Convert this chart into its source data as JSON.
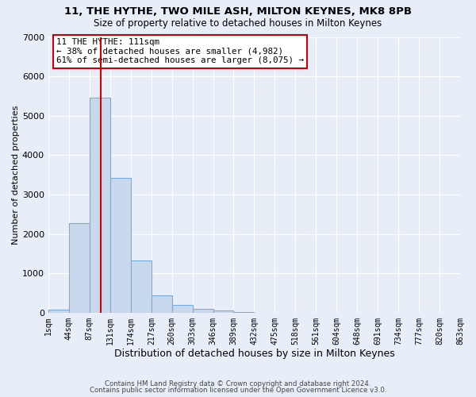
{
  "title": "11, THE HYTHE, TWO MILE ASH, MILTON KEYNES, MK8 8PB",
  "subtitle": "Size of property relative to detached houses in Milton Keynes",
  "xlabel": "Distribution of detached houses by size in Milton Keynes",
  "ylabel": "Number of detached properties",
  "bar_color": "#c8d9ee",
  "bar_edge_color": "#7aabda",
  "background_color": "#e8eef8",
  "grid_color": "#ffffff",
  "bin_edges": [
    1,
    44,
    87,
    131,
    174,
    217,
    260,
    303,
    346,
    389,
    432,
    475,
    518,
    561,
    604,
    648,
    691,
    734,
    777,
    820,
    863
  ],
  "bin_heights": [
    75,
    2280,
    5450,
    3430,
    1330,
    450,
    195,
    90,
    50,
    25,
    0,
    0,
    0,
    0,
    0,
    0,
    0,
    0,
    0,
    0
  ],
  "tick_labels": [
    "1sqm",
    "44sqm",
    "87sqm",
    "131sqm",
    "174sqm",
    "217sqm",
    "260sqm",
    "303sqm",
    "346sqm",
    "389sqm",
    "432sqm",
    "475sqm",
    "518sqm",
    "561sqm",
    "604sqm",
    "648sqm",
    "691sqm",
    "734sqm",
    "777sqm",
    "820sqm",
    "863sqm"
  ],
  "vline_x": 111,
  "vline_color": "#cc0000",
  "annotation_title": "11 THE HYTHE: 111sqm",
  "annotation_line1": "← 38% of detached houses are smaller (4,982)",
  "annotation_line2": "61% of semi-detached houses are larger (8,075) →",
  "annotation_box_color": "white",
  "annotation_edge_color": "#cc0000",
  "ylim": [
    0,
    7000
  ],
  "footnote1": "Contains HM Land Registry data © Crown copyright and database right 2024.",
  "footnote2": "Contains public sector information licensed under the Open Government Licence v3.0."
}
